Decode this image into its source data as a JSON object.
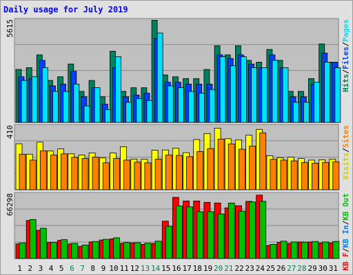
{
  "chart_data": {
    "type": "bar",
    "title": "Daily usage for July 2019",
    "colors": {
      "hits": "#00805c",
      "files": "#0040ff",
      "pages": "#00e0ff",
      "visits": "#ffff00",
      "sites": "#ff8000",
      "kb_f": "#ff0000",
      "kb_in": "#0080ff",
      "kb_out": "#00c000",
      "weekend_day": "#00805c",
      "weekday": "#000000",
      "panel_bg": "#c0c0c0",
      "frame_bg": "#e0e0e0"
    },
    "categories": [
      "1",
      "2",
      "3",
      "4",
      "5",
      "6",
      "7",
      "8",
      "9",
      "10",
      "11",
      "12",
      "13",
      "14",
      "15",
      "16",
      "17",
      "18",
      "19",
      "20",
      "21",
      "22",
      "23",
      "24",
      "25",
      "26",
      "27",
      "28",
      "29",
      "30",
      "31"
    ],
    "weekend_days": [
      "6",
      "7",
      "13",
      "14",
      "20",
      "21",
      "27",
      "28"
    ],
    "panels": [
      {
        "id": "hits-files-pages",
        "max_label": "5615",
        "ylim": [
          0,
          5615
        ],
        "legend": [
          {
            "text": "Hits",
            "color": "#00805c"
          },
          {
            "text": "/",
            "color": "#000000"
          },
          {
            "text": "Files",
            "color": "#0040ff"
          },
          {
            "text": "/",
            "color": "#000000"
          },
          {
            "text": "Pages",
            "color": "#00e0ff"
          }
        ],
        "series": [
          {
            "name": "Hits",
            "color": "#00805c",
            "values": [
              2900,
              3000,
              3700,
              2300,
              2500,
              3200,
              1700,
              2300,
              1400,
              3900,
              1700,
              1900,
              1900,
              5600,
              2600,
              2500,
              2400,
              2400,
              2900,
              4200,
              3700,
              4200,
              3400,
              3300,
              4000,
              3400,
              1700,
              1700,
              2400,
              4300,
              3300
            ]
          },
          {
            "name": "Files",
            "color": "#0040ff",
            "values": [
              2500,
              2400,
              3400,
              2000,
              2100,
              2800,
              1400,
              1900,
              1000,
              3000,
              1400,
              1500,
              1600,
              4600,
              2200,
              2200,
              2100,
              2100,
              2100,
              3700,
              3500,
              3700,
              3200,
              3000,
              3700,
              3000,
              1400,
              1400,
              2100,
              3800,
              3300
            ]
          },
          {
            "name": "Pages",
            "color": "#00e0ff",
            "values": [
              2300,
              2500,
              3000,
              1700,
              1700,
              2100,
              900,
              1900,
              700,
              3600,
              1100,
              1300,
              1200,
              4900,
              2000,
              1900,
              1700,
              1600,
              1800,
              3600,
              3100,
              3600,
              3000,
              3000,
              3400,
              3000,
              1100,
              1100,
              2200,
              3300,
              3000
            ]
          }
        ]
      },
      {
        "id": "visits-sites",
        "max_label": "410",
        "ylim": [
          0,
          410
        ],
        "legend": [
          {
            "text": "Visits",
            "color": "#d0d000"
          },
          {
            "text": "/",
            "color": "#000000"
          },
          {
            "text": "Sites",
            "color": "#ff8000"
          }
        ],
        "series": [
          {
            "name": "Visits",
            "color": "#ffff00",
            "values": [
              295,
              228,
              305,
              248,
              262,
              230,
              222,
              236,
              204,
              236,
              275,
              196,
              196,
              254,
              255,
              266,
              238,
              322,
              360,
              395,
              327,
              320,
              350,
              387,
              218,
              206,
              209,
              200,
              190,
              192,
              196
            ]
          },
          {
            "name": "Sites",
            "color": "#ff8000",
            "values": [
              228,
              190,
              250,
              223,
              230,
              208,
              200,
              210,
              173,
              200,
              190,
              177,
              173,
              196,
              223,
              220,
              212,
              245,
              264,
              325,
              294,
              260,
              280,
              365,
              195,
              190,
              185,
              175,
              170,
              175,
              180
            ]
          }
        ]
      },
      {
        "id": "kb",
        "max_label": "66298",
        "ylim": [
          0,
          66298
        ],
        "legend": [
          {
            "text": "KB F",
            "color": "#ff0000"
          },
          {
            "text": "/",
            "color": "#000000"
          },
          {
            "text": "KB In",
            "color": "#0080ff"
          },
          {
            "text": "/",
            "color": "#000000"
          },
          {
            "text": "KB Out",
            "color": "#00c000"
          }
        ],
        "series": [
          {
            "name": "KB F",
            "color": "#ff0000",
            "values": [
              15000,
              39000,
              29000,
              16500,
              18600,
              15000,
              12500,
              17000,
              19000,
              20200,
              15600,
              16000,
              14500,
              15500,
              38300,
              62700,
              59000,
              59000,
              57600,
              57000,
              52000,
              54200,
              58600,
              65000,
              13500,
              16500,
              15500,
              17000,
              17000,
              16000,
              16000
            ]
          },
          {
            "name": "KB Out",
            "color": "#00c000",
            "values": [
              16000,
              40000,
              31000,
              16500,
              19300,
              15600,
              13900,
              17500,
              19700,
              21200,
              16500,
              16200,
              15700,
              17800,
              33000,
              54000,
              53000,
              48000,
              48000,
              45700,
              56900,
              48600,
              58000,
              58600,
              14500,
              17800,
              17000,
              16800,
              17500,
              17000,
              17500
            ]
          }
        ]
      }
    ]
  }
}
